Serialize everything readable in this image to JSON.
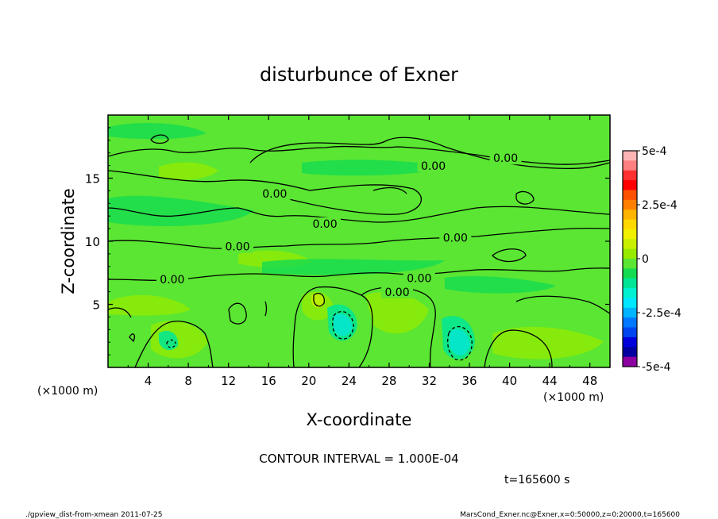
{
  "chart_data": {
    "type": "heatmap",
    "title": "disturbunce of Exner",
    "xlabel": "X-coordinate",
    "ylabel": "Z-coordinate",
    "x_unit": "(×1000 m)",
    "y_unit": "(×1000 m)",
    "xlim": [
      0,
      50
    ],
    "ylim": [
      0,
      20
    ],
    "x_ticks": [
      4,
      8,
      12,
      16,
      20,
      24,
      28,
      32,
      36,
      40,
      44,
      48
    ],
    "y_ticks": [
      5,
      10,
      15
    ],
    "x_tick_labels": [
      "4",
      "8",
      "12",
      "16",
      "20",
      "24",
      "28",
      "32",
      "36",
      "40",
      "44",
      "48"
    ],
    "y_tick_labels": [
      "5",
      "10",
      "15"
    ],
    "colorbar": {
      "min": -0.0005,
      "max": 0.0005,
      "tick_labels": [
        "5e-4",
        "2.5e-4",
        "0",
        "-2.5e-4",
        "-5e-4"
      ],
      "tick_values": [
        0.0005,
        0.00025,
        0,
        -0.00025,
        -0.0005
      ],
      "colors": [
        "#ffb4b4",
        "#ff8080",
        "#ff3030",
        "#ff0000",
        "#ff5000",
        "#ff8000",
        "#ffb400",
        "#ffd800",
        "#f0f000",
        "#c8f000",
        "#96eb00",
        "#5ae632",
        "#14dc50",
        "#00e696",
        "#00f0d2",
        "#00e6ff",
        "#00b4ff",
        "#0078ff",
        "#0046f0",
        "#0000dc",
        "#0000a0",
        "#8c00a0"
      ]
    },
    "contour_labels": [
      {
        "text": "0.00",
        "x": 32.4,
        "z": 15.8
      },
      {
        "text": "0.00",
        "x": 39.6,
        "z": 16.4
      },
      {
        "text": "0.00",
        "x": 16.6,
        "z": 13.6
      },
      {
        "text": "0.00",
        "x": 21.6,
        "z": 11.2
      },
      {
        "text": "0.00",
        "x": 34.6,
        "z": 10.1
      },
      {
        "text": "0.00",
        "x": 12.9,
        "z": 9.4
      },
      {
        "text": "0.00",
        "x": 6.4,
        "z": 6.8
      },
      {
        "text": "0.00",
        "x": 31.0,
        "z": 6.9
      },
      {
        "text": "0.00",
        "x": 28.8,
        "z": 5.8
      }
    ],
    "contour_interval": "CONTOUR INTERVAL = 1.000E-04",
    "time": "t=165600 s"
  },
  "footer": {
    "left": "./gpview_dist-from-xmean  2011-07-25",
    "right": "MarsCond_Exner.nc@Exner,x=0:50000,z=0:20000,t=165600"
  }
}
